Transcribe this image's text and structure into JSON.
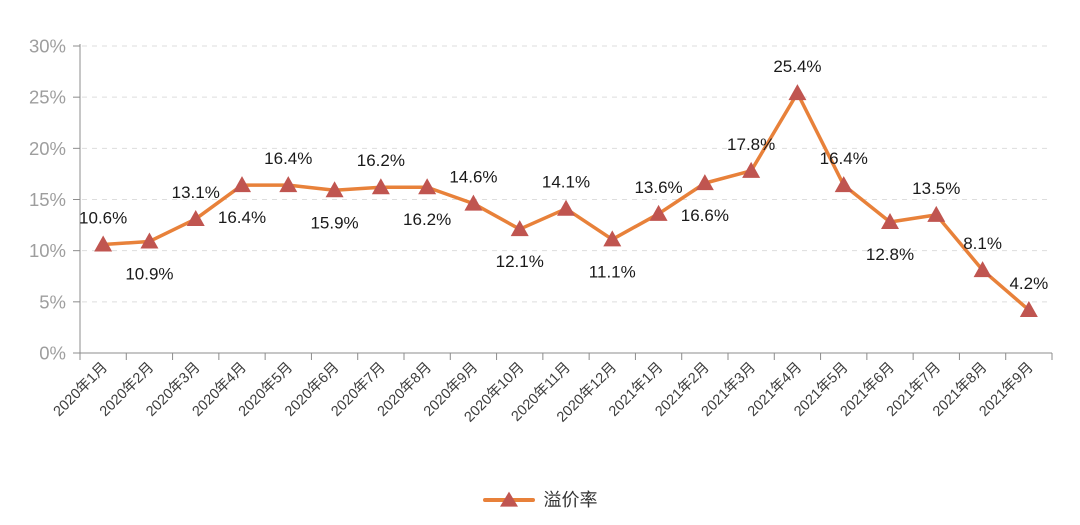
{
  "chart_data": {
    "type": "line",
    "title": "",
    "categories": [
      "2020年1月",
      "2020年2月",
      "2020年3月",
      "2020年4月",
      "2020年5月",
      "2020年6月",
      "2020年7月",
      "2020年8月",
      "2020年9月",
      "2020年10月",
      "2020年11月",
      "2020年12月",
      "2021年1月",
      "2021年2月",
      "2021年3月",
      "2021年4月",
      "2021年5月",
      "2021年6月",
      "2021年7月",
      "2021年8月",
      "2021年9月"
    ],
    "series": [
      {
        "name": "溢价率",
        "values": [
          10.6,
          10.9,
          13.1,
          16.4,
          16.4,
          15.9,
          16.2,
          16.2,
          14.6,
          12.1,
          14.1,
          11.1,
          13.6,
          16.6,
          17.8,
          25.4,
          16.4,
          12.8,
          13.5,
          8.1,
          4.2
        ],
        "labels": [
          "10.6%",
          "10.9%",
          "13.1%",
          "16.4%",
          "16.4%",
          "15.9%",
          "16.2%",
          "16.2%",
          "14.6%",
          "12.1%",
          "14.1%",
          "11.1%",
          "13.6%",
          "16.6%",
          "17.8%",
          "25.4%",
          "16.4%",
          "12.8%",
          "13.5%",
          "8.1%",
          "4.2%"
        ],
        "label_positions": [
          "above",
          "below",
          "above",
          "below",
          "above",
          "below",
          "above",
          "below",
          "above",
          "below",
          "above",
          "below",
          "above",
          "below",
          "above",
          "above",
          "above",
          "below",
          "above",
          "above",
          "above"
        ]
      }
    ],
    "xlabel": "",
    "ylabel": "",
    "ylim": [
      0,
      30
    ],
    "y_tick_step": 5,
    "y_tick_labels": [
      "0%",
      "5%",
      "10%",
      "15%",
      "20%",
      "25%",
      "30%"
    ],
    "grid": "horizontal-dashed",
    "legend": {
      "position": "bottom-center",
      "items": [
        {
          "label": "溢价率",
          "marker": "triangle-on-line"
        }
      ]
    },
    "colors": {
      "line": "#E8813A",
      "marker": "#C05550",
      "data_label": "#1A1A1A",
      "y_axis_label": "#9E9E9E",
      "x_axis_label": "#3D3D3D",
      "axis_line": "#8C8C8C",
      "gridline": "#DDDDDD",
      "legend_text": "#333333",
      "background": "#FFFFFF"
    }
  }
}
